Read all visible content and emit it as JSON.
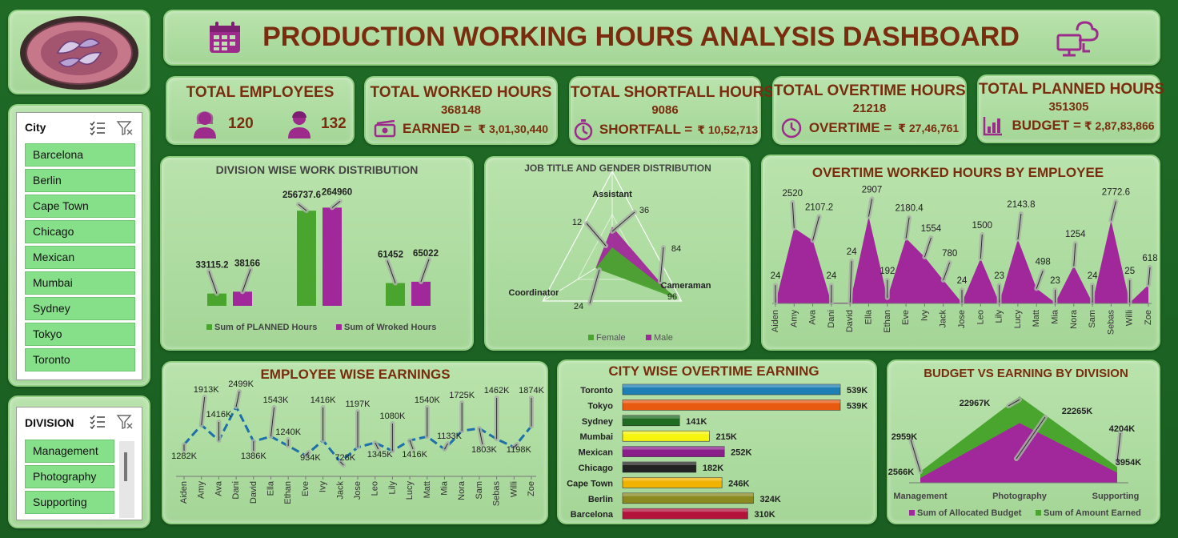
{
  "header": {
    "title": "PRODUCTION WORKING HOURS ANALYSIS DASHBOARD"
  },
  "icons": {
    "logo": "logo-emblem",
    "calendar": "calendar-icon",
    "cloud": "cloud-computer-icon"
  },
  "colors": {
    "planned": "#4aa52e",
    "worked": "#a0289a",
    "title": "#7a2d0e",
    "panel": "#b0dea2"
  },
  "kpis": {
    "employees": {
      "title": "TOTAL EMPLOYEES",
      "female": "120",
      "male": "132"
    },
    "worked": {
      "title": "TOTAL WORKED HOURS",
      "value": "368148",
      "label": "EARNED =",
      "amount": "₹ 3,01,30,440"
    },
    "shortfall": {
      "title": "TOTAL SHORTFALL HOURS",
      "value": "9086",
      "label": "SHORTFALL =",
      "amount": "₹ 10,52,713"
    },
    "overtime": {
      "title": "TOTAL OVERTIME HOURS",
      "value": "21218",
      "label": "OVERTIME =",
      "amount": "₹ 27,46,761"
    },
    "planned": {
      "title": "TOTAL PLANNED HOURS",
      "value": "351305",
      "label": "BUDGET =",
      "amount": "₹ 2,87,83,866"
    }
  },
  "city_slicer": {
    "header": "City",
    "items": [
      "Barcelona",
      "Berlin",
      "Cape Town",
      "Chicago",
      "Mexican",
      "Mumbai",
      "Sydney",
      "Tokyo",
      "Toronto"
    ]
  },
  "division_slicer": {
    "header": "DIVISION",
    "items": [
      "Management",
      "Photography",
      "Supporting"
    ]
  },
  "chart_data": [
    {
      "id": "division",
      "type": "bar",
      "title": "DIVISION WISE WORK DISTRIBUTION",
      "categories": [
        "Management",
        "Photography",
        "Supporting"
      ],
      "series": [
        {
          "name": "Sum of PLANNED Hours",
          "values": [
            33115.2,
            256737.6,
            61452
          ],
          "labels": [
            "33115.2",
            "256737.6",
            "61452"
          ]
        },
        {
          "name": "Sum of Wroked Hours",
          "values": [
            38166,
            264960,
            65022
          ],
          "labels": [
            "38166",
            "264960",
            "65022"
          ]
        }
      ],
      "ylim": [
        0,
        270000
      ],
      "legend": "bottom"
    },
    {
      "id": "jobgender",
      "type": "radar",
      "title": "JOB TITLE AND GENDER DISTRIBUTION",
      "categories": [
        "Assistant",
        "Cameraman",
        "Coordinator"
      ],
      "series": [
        {
          "name": "Female",
          "values": [
            12,
            96,
            24
          ]
        },
        {
          "name": "Male",
          "values": [
            36,
            84,
            24
          ]
        }
      ],
      "point_labels": [
        "36",
        "12",
        "84",
        "96",
        "24"
      ],
      "legend": "bottom"
    },
    {
      "id": "overtime",
      "type": "area",
      "title": "OVERTIME WORKED HOURS BY EMPLOYEE",
      "categories": [
        "Aiden",
        "Amy",
        "Ava",
        "Dani",
        "David",
        "Ella",
        "Ethan",
        "Eve",
        "Ivy",
        "Jack",
        "Jose",
        "Leo",
        "Lily",
        "Lucy",
        "Matt",
        "Mia",
        "Nora",
        "Sam",
        "Sebas",
        "Willi",
        "Zoe"
      ],
      "values": [
        24,
        2520,
        2107.2,
        24,
        24,
        2907,
        192,
        2180.4,
        1554,
        780,
        24,
        1500,
        23,
        2143.8,
        498,
        23,
        1254,
        24,
        2772.6,
        25,
        618
      ],
      "labels": [
        "24",
        "2520",
        "2107.2",
        "24",
        "24",
        "2907",
        "192",
        "2180.4",
        "1554",
        "780",
        "24",
        "1500",
        "23",
        "2143.8",
        "498",
        "23",
        "1254",
        "24",
        "2772.6",
        "25",
        "618"
      ],
      "ylim": [
        0,
        3000
      ]
    },
    {
      "id": "earnings",
      "type": "line",
      "title": "EMPLOYEE WISE EARNINGS",
      "categories": [
        "Aiden",
        "Amy",
        "Ava",
        "Dani",
        "David",
        "Ella",
        "Ethan",
        "Eve",
        "Ivy",
        "Jack",
        "Jose",
        "Leo",
        "Lily",
        "Lucy",
        "Matt",
        "Mia",
        "Nora",
        "Sam",
        "Sebas",
        "Willi",
        "Zoe"
      ],
      "values": [
        1282,
        1913,
        1416,
        2499,
        1386,
        1543,
        1240,
        934,
        1416,
        728,
        1197,
        1345,
        1080,
        1416,
        1540,
        1133,
        1725,
        1803,
        1462,
        1198,
        1874
      ],
      "labels": [
        "1282K",
        "1913K",
        "1416K",
        "2499K",
        "1386K",
        "1543K",
        "1240K",
        "934K",
        "1416K",
        "728K",
        "1197K",
        "1345K",
        "1080K",
        "1416K",
        "1540K",
        "1133K",
        "1725K",
        "1803K",
        "1462K",
        "1198K",
        "1874K"
      ]
    },
    {
      "id": "cityot",
      "type": "bar",
      "orientation": "horizontal",
      "title": "CITY WISE OVERTIME EARNING",
      "categories": [
        "Toronto",
        "Tokyo",
        "Sydney",
        "Mumbai",
        "Mexican",
        "Chicago",
        "Cape Town",
        "Berlin",
        "Barcelona"
      ],
      "values": [
        539,
        539,
        141,
        215,
        252,
        182,
        246,
        324,
        310
      ],
      "labels": [
        "539K",
        "539K",
        "141K",
        "215K",
        "252K",
        "182K",
        "246K",
        "324K",
        "310K"
      ],
      "bar_colors": [
        "#1f7fb4",
        "#e85a10",
        "#1f6b22",
        "#f5f50f",
        "#8a1f8a",
        "#222222",
        "#f0b300",
        "#8a8a20",
        "#b3123a"
      ]
    },
    {
      "id": "budget",
      "type": "area",
      "title": "BUDGET VS EARNING BY DIVISION",
      "categories": [
        "Management",
        "Photography",
        "Supporting"
      ],
      "series": [
        {
          "name": "Sum of Allocated Budget",
          "values": [
            2566,
            22265,
            3954
          ],
          "labels": [
            "2566K",
            "22265K",
            "3954K"
          ]
        },
        {
          "name": "Sum of Amount Earned",
          "values": [
            2959,
            22967,
            4204
          ],
          "labels": [
            "2959K",
            "22967K",
            "4204K"
          ]
        }
      ],
      "legend": "bottom"
    }
  ]
}
